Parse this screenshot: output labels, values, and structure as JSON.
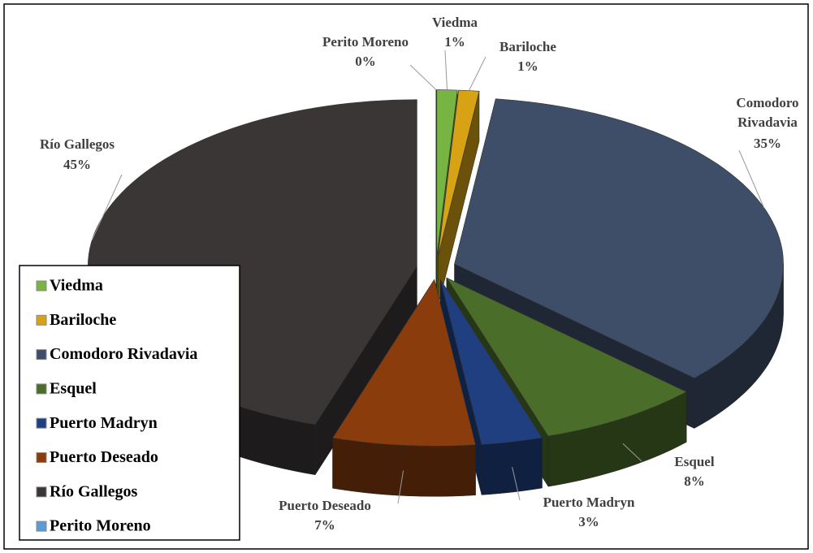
{
  "chart_data": {
    "type": "pie3d",
    "categories": [
      "Viedma",
      "Bariloche",
      "Comodoro Rivadavia",
      "Esquel",
      "Puerto Madryn",
      "Puerto Deseado",
      "Río Gallegos",
      "Perito Moreno"
    ],
    "values": [
      1,
      1,
      35,
      8,
      3,
      7,
      45,
      0
    ],
    "value_labels": [
      "1%",
      "1%",
      "35%",
      "8%",
      "3%",
      "7%",
      "45%",
      "0%"
    ],
    "colors": [
      "#78b441",
      "#d7a214",
      "#3f4e68",
      "#4b6d2a",
      "#1f3f80",
      "#8a3c0d",
      "#3a3636",
      "#5b9bd5"
    ],
    "legend": "left"
  }
}
